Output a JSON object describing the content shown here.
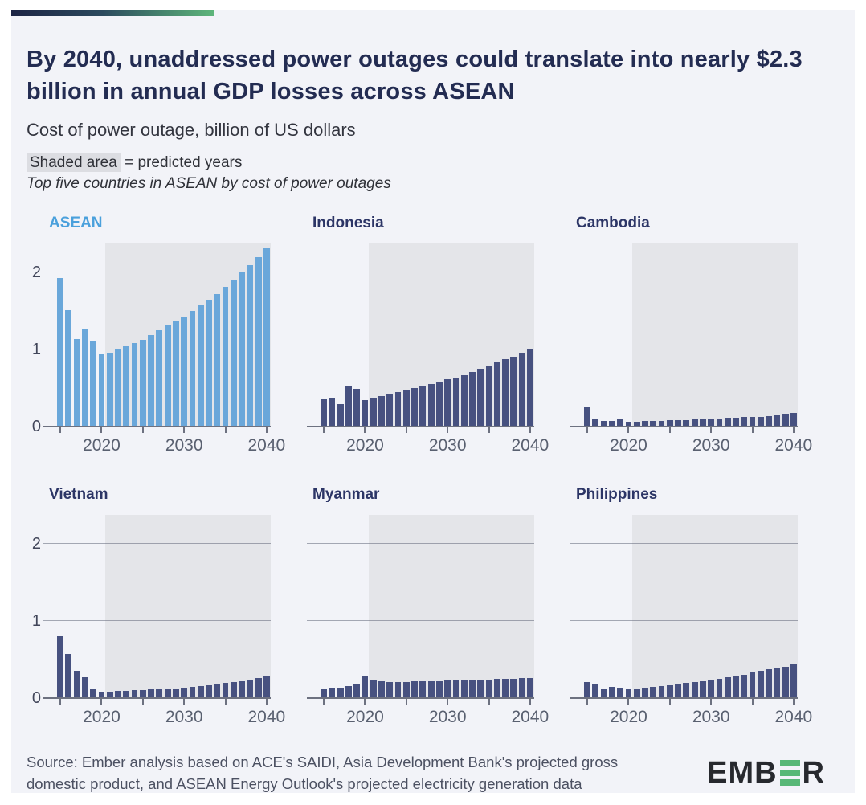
{
  "header": {
    "title": "By 2040, unaddressed power outages could translate into nearly $2.3 billion in annual GDP losses across ASEAN",
    "subtitle": "Cost of power outage, billion of US dollars",
    "note_highlight": "Shaded area",
    "note_rest": " = predicted years",
    "note_italic": "Top five countries in ASEAN by cost of power outages"
  },
  "colors": {
    "card_background": "#f2f3f8",
    "accent_gradient_start": "#1c2444",
    "accent_gradient_end": "#5eb67b",
    "title_navy": "#232c52",
    "asean_bar": "#6aa7da",
    "asean_title": "#4aa0dc",
    "country_bar": "#475180",
    "country_title": "#2c3566",
    "shade": "#e4e5e9",
    "logo_green": "#58b877"
  },
  "chart_data": {
    "type": "bar",
    "title": "Cost of power outage, billion of US dollars",
    "ylabel": "billion of US dollars",
    "x": [
      2015,
      2016,
      2017,
      2018,
      2019,
      2020,
      2021,
      2022,
      2023,
      2024,
      2025,
      2026,
      2027,
      2028,
      2029,
      2030,
      2031,
      2032,
      2033,
      2034,
      2035,
      2036,
      2037,
      2038,
      2039,
      2040
    ],
    "x_tick_years": [
      2015,
      2020,
      2025,
      2030,
      2035,
      2040
    ],
    "x_label_years": [
      2020,
      2030,
      2040
    ],
    "ylim": [
      0,
      2.375
    ],
    "gridlines": [
      1,
      2
    ],
    "y_axis_tick_labels": [
      "0",
      "1",
      "2"
    ],
    "predicted_from_year": 2021,
    "shaded_area_meaning": "predicted years",
    "series": [
      {
        "name": "ASEAN",
        "highlight": true,
        "show_y_axis": true,
        "values": [
          1.93,
          1.51,
          1.14,
          1.27,
          1.11,
          0.94,
          0.96,
          1.0,
          1.04,
          1.08,
          1.13,
          1.19,
          1.25,
          1.31,
          1.37,
          1.43,
          1.5,
          1.57,
          1.64,
          1.72,
          1.81,
          1.9,
          2.0,
          2.09,
          2.2,
          2.31
        ]
      },
      {
        "name": "Indonesia",
        "highlight": false,
        "show_y_axis": false,
        "values": [
          0.35,
          0.37,
          0.29,
          0.52,
          0.49,
          0.34,
          0.38,
          0.4,
          0.42,
          0.45,
          0.47,
          0.5,
          0.52,
          0.55,
          0.58,
          0.61,
          0.64,
          0.67,
          0.71,
          0.75,
          0.79,
          0.83,
          0.87,
          0.91,
          0.95,
          1.0
        ]
      },
      {
        "name": "Cambodia",
        "highlight": false,
        "show_y_axis": false,
        "values": [
          0.25,
          0.09,
          0.07,
          0.07,
          0.09,
          0.06,
          0.06,
          0.07,
          0.07,
          0.07,
          0.08,
          0.08,
          0.08,
          0.09,
          0.09,
          0.1,
          0.1,
          0.11,
          0.11,
          0.12,
          0.12,
          0.13,
          0.14,
          0.16,
          0.17,
          0.18
        ]
      },
      {
        "name": "Vietnam",
        "highlight": false,
        "show_y_axis": true,
        "values": [
          0.8,
          0.57,
          0.35,
          0.27,
          0.13,
          0.08,
          0.08,
          0.09,
          0.09,
          0.1,
          0.1,
          0.11,
          0.12,
          0.12,
          0.13,
          0.14,
          0.15,
          0.16,
          0.17,
          0.18,
          0.2,
          0.21,
          0.22,
          0.24,
          0.26,
          0.28
        ]
      },
      {
        "name": "Myanmar",
        "highlight": false,
        "show_y_axis": false,
        "values": [
          0.13,
          0.14,
          0.14,
          0.16,
          0.18,
          0.28,
          0.24,
          0.22,
          0.21,
          0.21,
          0.21,
          0.22,
          0.22,
          0.22,
          0.22,
          0.23,
          0.23,
          0.23,
          0.24,
          0.24,
          0.24,
          0.25,
          0.25,
          0.25,
          0.26,
          0.26
        ]
      },
      {
        "name": "Philippines",
        "highlight": false,
        "show_y_axis": false,
        "values": [
          0.21,
          0.19,
          0.13,
          0.15,
          0.14,
          0.12,
          0.13,
          0.14,
          0.15,
          0.16,
          0.17,
          0.18,
          0.2,
          0.21,
          0.22,
          0.24,
          0.25,
          0.27,
          0.28,
          0.3,
          0.33,
          0.35,
          0.37,
          0.39,
          0.41,
          0.45
        ]
      }
    ]
  },
  "footer": {
    "source": "Source: Ember analysis based on ACE's SAIDI, Asia Development Bank's projected gross domestic product, and ASEAN Energy Outlook's projected electricity generation data",
    "logo_left": "EMB",
    "logo_right": "R"
  }
}
